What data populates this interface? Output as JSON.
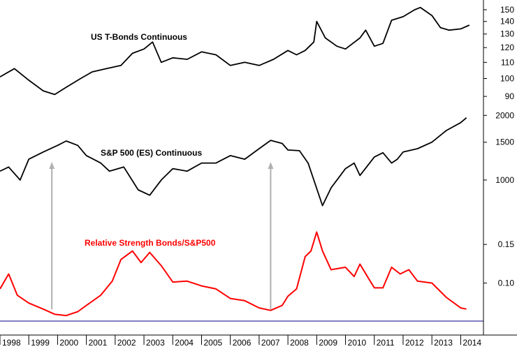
{
  "chart_data": {
    "type": "line",
    "x_range": [
      1998,
      2014.5
    ],
    "x_ticks": [
      "1998",
      "1999",
      "2000",
      "2001",
      "2002",
      "2003",
      "2004",
      "2005",
      "2006",
      "2007",
      "2008",
      "2009",
      "2010",
      "2011",
      "2012",
      "2013",
      "2014"
    ],
    "colors": {
      "bonds": "#000000",
      "sp500": "#000000",
      "ratio": "#ff0000",
      "arrow": "#b0b0b0",
      "baseline": "#000080"
    },
    "panels": [
      {
        "id": "bonds",
        "label": "US T-Bonds Continuous",
        "scale": "log",
        "ylim": [
          85,
          155
        ],
        "y_ticks": [
          "90",
          "100",
          "110",
          "120",
          "130",
          "140",
          "150"
        ],
        "series": [
          {
            "x": [
              1998.0,
              1998.5,
              1999.0,
              1999.5,
              1999.9,
              2000.3,
              2000.8,
              2001.2,
              2001.7,
              2002.2,
              2002.6,
              2003.0,
              2003.3,
              2003.6,
              2004.0,
              2004.5,
              2005.0,
              2005.5,
              2006.0,
              2006.5,
              2007.0,
              2007.5,
              2008.0,
              2008.3,
              2008.6,
              2008.9,
              2009.0,
              2009.3,
              2009.7,
              2010.0,
              2010.5,
              2010.7,
              2011.0,
              2011.3,
              2011.6,
              2012.0,
              2012.4,
              2012.6,
              2013.0,
              2013.3,
              2013.6,
              2014.0,
              2014.3
            ],
            "y": [
              101,
              106,
              99,
              93,
              91,
              95,
              100,
              104,
              106,
              108,
              116,
              119,
              124,
              110,
              113,
              112,
              117,
              115,
              108,
              110,
              108,
              112,
              118,
              115,
              118,
              124,
              140,
              127,
              121,
              119,
              127,
              133,
              121,
              123,
              141,
              144,
              150,
              152,
              145,
              135,
              133,
              134,
              137
            ]
          }
        ]
      },
      {
        "id": "sp500",
        "label": "S&P 500 (ES) Continuous",
        "scale": "log",
        "ylim": [
          730,
          2050
        ],
        "y_ticks": [
          "1000",
          "1500",
          "2000"
        ],
        "series": [
          {
            "x": [
              1998.0,
              1998.3,
              1998.7,
              1999.0,
              1999.5,
              2000.0,
              2000.3,
              2000.7,
              2001.0,
              2001.5,
              2001.8,
              2002.3,
              2002.8,
              2003.2,
              2003.6,
              2004.0,
              2004.5,
              2005.0,
              2005.5,
              2006.0,
              2006.5,
              2007.0,
              2007.4,
              2007.8,
              2008.0,
              2008.4,
              2008.7,
              2009.2,
              2009.5,
              2010.0,
              2010.3,
              2010.5,
              2011.0,
              2011.3,
              2011.6,
              2011.8,
              2012.0,
              2012.5,
              2013.0,
              2013.5,
              2014.0,
              2014.2
            ],
            "y": [
              1100,
              1150,
              1000,
              1250,
              1350,
              1450,
              1520,
              1450,
              1300,
              1200,
              1100,
              1150,
              900,
              850,
              1000,
              1130,
              1100,
              1200,
              1200,
              1300,
              1250,
              1400,
              1530,
              1480,
              1380,
              1370,
              1200,
              760,
              920,
              1130,
              1200,
              1050,
              1280,
              1340,
              1200,
              1250,
              1350,
              1400,
              1500,
              1700,
              1850,
              1950
            ]
          }
        ]
      },
      {
        "id": "ratio",
        "label": "Relative Strength Bonds/S&P500",
        "scale": "log",
        "ylim": [
          0.068,
          0.19
        ],
        "y_ticks": [
          "0.15",
          "0.10"
        ],
        "series": [
          {
            "x": [
              1998.0,
              1998.3,
              1998.6,
              1999.0,
              1999.5,
              1999.9,
              2000.3,
              2000.7,
              2001.0,
              2001.5,
              2001.9,
              2002.2,
              2002.6,
              2002.9,
              2003.2,
              2003.6,
              2004.0,
              2004.5,
              2005.0,
              2005.5,
              2006.0,
              2006.5,
              2007.0,
              2007.4,
              2007.8,
              2008.0,
              2008.3,
              2008.6,
              2008.8,
              2009.0,
              2009.2,
              2009.5,
              2010.0,
              2010.3,
              2010.5,
              2010.8,
              2011.0,
              2011.3,
              2011.6,
              2011.9,
              2012.2,
              2012.5,
              2013.0,
              2013.5,
              2014.0,
              2014.2
            ],
            "y": [
              0.094,
              0.11,
              0.088,
              0.081,
              0.076,
              0.072,
              0.071,
              0.074,
              0.079,
              0.088,
              0.102,
              0.128,
              0.14,
              0.124,
              0.138,
              0.12,
              0.101,
              0.102,
              0.097,
              0.094,
              0.085,
              0.083,
              0.077,
              0.075,
              0.079,
              0.087,
              0.094,
              0.132,
              0.14,
              0.171,
              0.14,
              0.115,
              0.118,
              0.107,
              0.122,
              0.105,
              0.095,
              0.095,
              0.118,
              0.11,
              0.115,
              0.102,
              0.1,
              0.086,
              0.077,
              0.076
            ]
          }
        ]
      }
    ],
    "annotations": [
      {
        "type": "arrow",
        "x": 1999.8,
        "from": "ratio",
        "to": "sp500"
      },
      {
        "type": "arrow",
        "x": 2007.4,
        "from": "ratio",
        "to": "sp500"
      }
    ]
  }
}
